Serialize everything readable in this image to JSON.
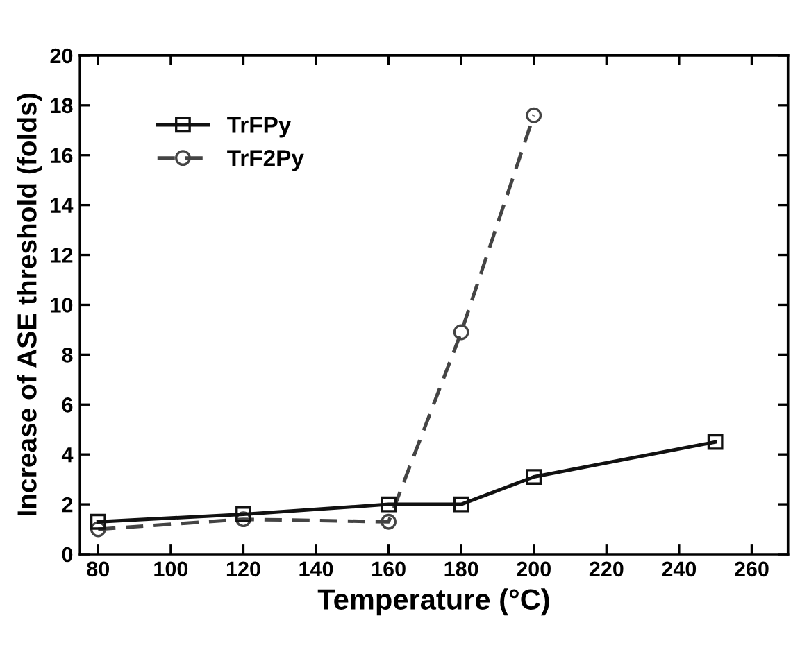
{
  "chart_data": {
    "type": "line",
    "xlabel": "Temperature (°C)",
    "ylabel": "Increase of ASE threshold (folds)",
    "xlim": [
      75,
      270
    ],
    "xticks": [
      80,
      100,
      120,
      140,
      160,
      180,
      200,
      220,
      240,
      260
    ],
    "ylim": [
      0,
      20
    ],
    "yticks": [
      0,
      2,
      4,
      6,
      8,
      10,
      12,
      14,
      16,
      18,
      20
    ],
    "grid": false,
    "legend": "top left",
    "series": [
      {
        "name": "TrFPy",
        "color": "#111111",
        "marker": "square",
        "line_style": "solid",
        "x": [
          80,
          120,
          160,
          180,
          200,
          250
        ],
        "values": [
          1.3,
          1.6,
          2.0,
          2.0,
          3.1,
          4.5
        ]
      },
      {
        "name": "TrF2Py",
        "color": "#444444",
        "marker": "circle",
        "line_style": "dashed",
        "x": [
          80,
          120,
          160,
          180,
          200
        ],
        "values": [
          1.0,
          1.4,
          1.3,
          8.9,
          17.6
        ]
      }
    ]
  }
}
